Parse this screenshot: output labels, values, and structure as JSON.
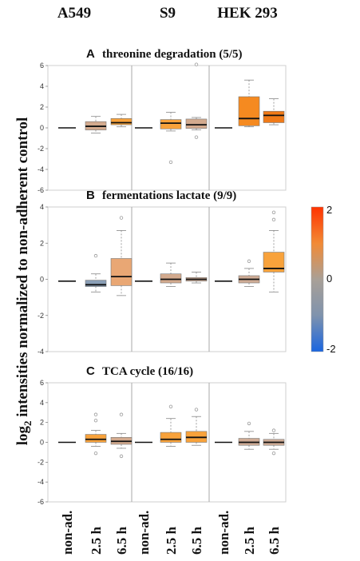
{
  "cell_lines": [
    "A549",
    "S9",
    "HEK 293"
  ],
  "y_axis": {
    "label_main": "log",
    "label_sub": "2",
    "label_rest": " intensities normalized to non-adherent control"
  },
  "colorbar": {
    "min": -2,
    "max": 2,
    "tick_labels": [
      "2",
      "0",
      "-2"
    ],
    "colors": [
      "#1a66e0",
      "#7f93ad",
      "#a9a097",
      "#f28a35",
      "#ff3300"
    ]
  },
  "x_tick_labels": [
    "non-ad.",
    "2.5 h",
    "6.5 h",
    "non-ad.",
    "2.5 h",
    "6.5 h",
    "non-ad.",
    "2.5 h",
    "6.5 h"
  ],
  "chart_data": [
    {
      "type": "boxplot",
      "letter": "A",
      "title": "threonine degradation (5/5)",
      "ylim": [
        -6,
        6
      ],
      "yticks": [
        6,
        4,
        2,
        0,
        -2,
        -4,
        -6
      ],
      "groups": [
        {
          "cell_line": "A549",
          "condition": "non-ad.",
          "median": 0,
          "reference": true
        },
        {
          "cell_line": "A549",
          "condition": "2.5 h",
          "median": 0.15,
          "q1": -0.2,
          "q3": 0.6,
          "whisker_low": -0.5,
          "whisker_high": 1.1,
          "outliers": [],
          "fill": "#d3aa8e"
        },
        {
          "cell_line": "A549",
          "condition": "6.5 h",
          "median": 0.5,
          "q1": 0.3,
          "q3": 0.9,
          "whisker_low": 0.1,
          "whisker_high": 1.3,
          "outliers": [],
          "fill": "#f8a23b"
        },
        {
          "cell_line": "S9",
          "condition": "non-ad.",
          "median": 0,
          "reference": true
        },
        {
          "cell_line": "S9",
          "condition": "2.5 h",
          "median": 0.45,
          "q1": -0.1,
          "q3": 0.8,
          "whisker_low": -0.3,
          "whisker_high": 1.5,
          "outliers": [
            -3.3
          ],
          "fill": "#f8a23b"
        },
        {
          "cell_line": "S9",
          "condition": "6.5 h",
          "median": 0.3,
          "q1": -0.05,
          "q3": 0.85,
          "whisker_low": -0.2,
          "whisker_high": 1.0,
          "outliers": [
            6.1,
            -0.9
          ],
          "fill": "#d3aa8e"
        },
        {
          "cell_line": "HEK 293",
          "condition": "non-ad.",
          "median": 0,
          "reference": true
        },
        {
          "cell_line": "HEK 293",
          "condition": "2.5 h",
          "median": 0.9,
          "q1": 0.2,
          "q3": 3.0,
          "whisker_low": 0.1,
          "whisker_high": 4.6,
          "outliers": [],
          "fill": "#f58a20"
        },
        {
          "cell_line": "HEK 293",
          "condition": "6.5 h",
          "median": 1.2,
          "q1": 0.5,
          "q3": 1.6,
          "whisker_low": 0.3,
          "whisker_high": 2.8,
          "outliers": [],
          "fill": "#f07a18"
        }
      ]
    },
    {
      "type": "boxplot",
      "letter": "B",
      "title": "fermentations lactate (9/9)",
      "ylim": [
        -4,
        4
      ],
      "yticks": [
        4,
        2,
        0,
        -2,
        -4
      ],
      "groups": [
        {
          "cell_line": "A549",
          "condition": "non-ad.",
          "median": -0.1,
          "reference": true
        },
        {
          "cell_line": "A549",
          "condition": "2.5 h",
          "median": -0.3,
          "q1": -0.4,
          "q3": -0.05,
          "whisker_low": -0.7,
          "whisker_high": 0.3,
          "outliers": [
            1.3
          ],
          "fill": "#8a9fb6"
        },
        {
          "cell_line": "A549",
          "condition": "6.5 h",
          "median": 0.15,
          "q1": -0.35,
          "q3": 1.15,
          "whisker_low": -0.9,
          "whisker_high": 2.7,
          "outliers": [
            3.4
          ],
          "fill": "#e9a774"
        },
        {
          "cell_line": "S9",
          "condition": "non-ad.",
          "median": -0.1,
          "reference": true
        },
        {
          "cell_line": "S9",
          "condition": "2.5 h",
          "median": 0.0,
          "q1": -0.2,
          "q3": 0.3,
          "whisker_low": -0.4,
          "whisker_high": 0.9,
          "outliers": [],
          "fill": "#d3aa8e"
        },
        {
          "cell_line": "S9",
          "condition": "6.5 h",
          "median": 0.0,
          "q1": -0.1,
          "q3": 0.1,
          "whisker_low": -0.2,
          "whisker_high": 0.4,
          "outliers": [],
          "fill": "#cfac96"
        },
        {
          "cell_line": "HEK 293",
          "condition": "non-ad.",
          "median": -0.1,
          "reference": true
        },
        {
          "cell_line": "HEK 293",
          "condition": "2.5 h",
          "median": 0.0,
          "q1": -0.2,
          "q3": 0.2,
          "whisker_low": -0.4,
          "whisker_high": 0.6,
          "outliers": [
            1.0
          ],
          "fill": "#cfac96"
        },
        {
          "cell_line": "HEK 293",
          "condition": "6.5 h",
          "median": 0.6,
          "q1": 0.4,
          "q3": 1.5,
          "whisker_low": -0.7,
          "whisker_high": 2.7,
          "outliers": [
            3.3,
            3.7
          ],
          "fill": "#f8a23b"
        }
      ]
    },
    {
      "type": "boxplot",
      "letter": "C",
      "title": "TCA cycle (16/16)",
      "ylim": [
        -6,
        6
      ],
      "yticks": [
        6,
        4,
        2,
        0,
        -2,
        -4,
        -6
      ],
      "groups": [
        {
          "cell_line": "A549",
          "condition": "non-ad.",
          "median": 0,
          "reference": true
        },
        {
          "cell_line": "A549",
          "condition": "2.5 h",
          "median": 0.3,
          "q1": 0.0,
          "q3": 0.8,
          "whisker_low": -0.4,
          "whisker_high": 1.2,
          "outliers": [
            2.2,
            2.8,
            -1.1
          ],
          "fill": "#f8a23b"
        },
        {
          "cell_line": "A549",
          "condition": "6.5 h",
          "median": 0.1,
          "q1": -0.2,
          "q3": 0.5,
          "whisker_low": -0.6,
          "whisker_high": 0.9,
          "outliers": [
            2.8,
            -1.4
          ],
          "fill": "#d3aa8e"
        },
        {
          "cell_line": "S9",
          "condition": "non-ad.",
          "median": 0,
          "reference": true
        },
        {
          "cell_line": "S9",
          "condition": "2.5 h",
          "median": 0.3,
          "q1": 0.0,
          "q3": 1.0,
          "whisker_low": -0.4,
          "whisker_high": 2.4,
          "outliers": [
            3.6
          ],
          "fill": "#f8a23b"
        },
        {
          "cell_line": "S9",
          "condition": "6.5 h",
          "median": 0.5,
          "q1": 0.0,
          "q3": 1.1,
          "whisker_low": -0.3,
          "whisker_high": 2.6,
          "outliers": [
            3.3
          ],
          "fill": "#f8a23b"
        },
        {
          "cell_line": "HEK 293",
          "condition": "non-ad.",
          "median": 0,
          "reference": true
        },
        {
          "cell_line": "HEK 293",
          "condition": "2.5 h",
          "median": 0.0,
          "q1": -0.3,
          "q3": 0.4,
          "whisker_low": -0.7,
          "whisker_high": 1.1,
          "outliers": [
            1.9
          ],
          "fill": "#cfac96"
        },
        {
          "cell_line": "HEK 293",
          "condition": "6.5 h",
          "median": 0.0,
          "q1": -0.3,
          "q3": 0.3,
          "whisker_low": -0.7,
          "whisker_high": 0.9,
          "outliers": [
            1.2,
            -1.1
          ],
          "fill": "#cfac96"
        }
      ]
    }
  ]
}
